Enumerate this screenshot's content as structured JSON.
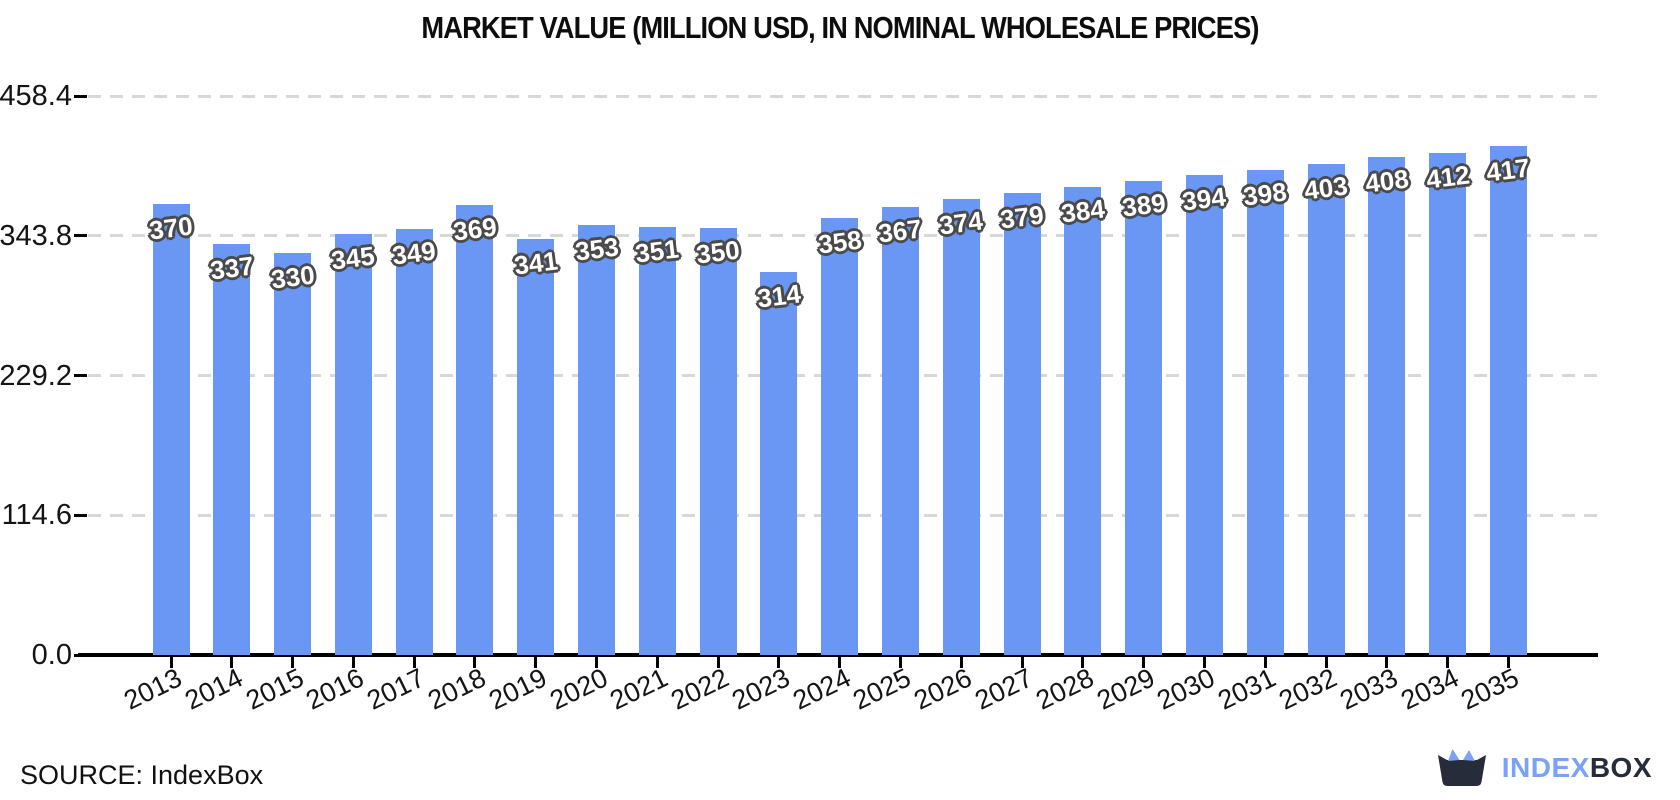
{
  "title": "MARKET VALUE (MILLION USD, IN NOMINAL WHOLESALE PRICES)",
  "source": {
    "label": "SOURCE: IndexBox"
  },
  "logo": {
    "index_text": "INDEX",
    "box_text": "BOX"
  },
  "colors": {
    "bar": "#6997f3",
    "grid": "#d8d8d8",
    "axis": "#000000",
    "bar_label_fill": "#ffffff",
    "bar_label_outline": "#4a4a4a",
    "logo_blue": "#7aa2f8",
    "logo_dark": "#262c3a"
  },
  "chart_data": {
    "type": "bar",
    "title": "MARKET VALUE (MILLION USD, IN NOMINAL WHOLESALE PRICES)",
    "categories": [
      "2013",
      "2014",
      "2015",
      "2016",
      "2017",
      "2018",
      "2019",
      "2020",
      "2021",
      "2022",
      "2023",
      "2024",
      "2025",
      "2026",
      "2027",
      "2028",
      "2029",
      "2030",
      "2031",
      "2032",
      "2033",
      "2034",
      "2035"
    ],
    "values": [
      370,
      337,
      330,
      345,
      349,
      369,
      341,
      353,
      351,
      350,
      314,
      358,
      367,
      374,
      379,
      384,
      389,
      394,
      398,
      403,
      408,
      412,
      417
    ],
    "bar_value_labels": true,
    "xlabel": "",
    "ylabel": "",
    "yticks": [
      0.0,
      114.6,
      229.2,
      343.8,
      458.4
    ],
    "ytick_labels": [
      "0.0",
      "114.6",
      "229.2",
      "343.8",
      "458.4"
    ],
    "ylim": [
      0,
      470
    ],
    "grid": "horizontal-dashed",
    "legend": "none",
    "xtick_rotation_deg": -26
  }
}
